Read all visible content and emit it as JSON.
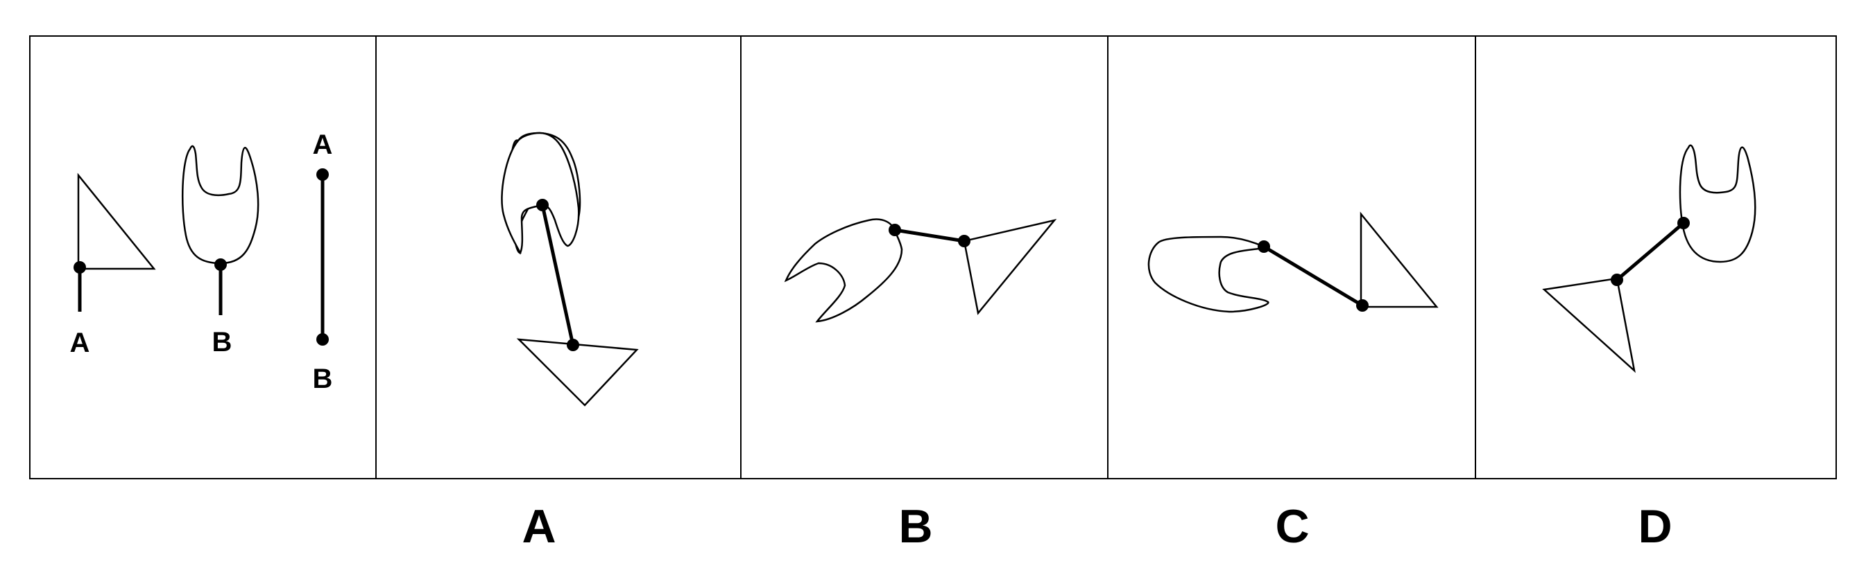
{
  "puzzle": {
    "reference": {
      "marker_a_triangle": "A",
      "marker_b_cup": "B",
      "marker_a_rod_top": "A",
      "marker_b_rod_bottom": "B"
    },
    "options": [
      {
        "id": "option-a",
        "label": "A"
      },
      {
        "id": "option-b",
        "label": "B"
      },
      {
        "id": "option-c",
        "label": "C"
      },
      {
        "id": "option-d",
        "label": "D"
      }
    ],
    "colors": {
      "stroke": "#000000",
      "background": "#ffffff"
    }
  }
}
